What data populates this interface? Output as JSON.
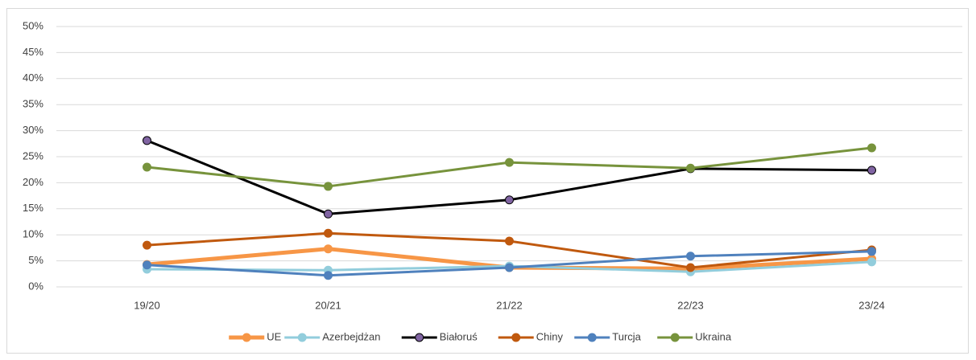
{
  "chart_data": {
    "type": "line",
    "categories": [
      "19/20",
      "20/21",
      "21/22",
      "22/23",
      "23/24"
    ],
    "series": [
      {
        "name": "UE",
        "color": "#f79646",
        "values": [
          4.3,
          7.3,
          3.7,
          3.5,
          5.4
        ]
      },
      {
        "name": "Azerbejdżan",
        "color": "#92cddc",
        "values": [
          3.4,
          3.2,
          4.0,
          2.9,
          4.8
        ]
      },
      {
        "name": "Białoruś",
        "color": "#000000",
        "marker_color": "#8064a2",
        "values": [
          28.1,
          14.0,
          16.7,
          22.7,
          22.4
        ]
      },
      {
        "name": "Chiny",
        "color": "#c0590e",
        "values": [
          8.0,
          10.3,
          8.8,
          3.7,
          7.1
        ]
      },
      {
        "name": "Turcja",
        "color": "#4f81bd",
        "values": [
          4.2,
          2.2,
          3.7,
          5.9,
          6.8
        ]
      },
      {
        "name": "Ukraina",
        "color": "#77933c",
        "values": [
          23.0,
          19.3,
          23.9,
          22.8,
          26.7
        ]
      }
    ],
    "ylim": [
      0,
      50
    ],
    "yticks": [
      {
        "value": 0,
        "label": "0%"
      },
      {
        "value": 5,
        "label": "5%"
      },
      {
        "value": 10,
        "label": "10%"
      },
      {
        "value": 15,
        "label": "15%"
      },
      {
        "value": 20,
        "label": "20%"
      },
      {
        "value": 25,
        "label": "25%"
      },
      {
        "value": 30,
        "label": "30%"
      },
      {
        "value": 35,
        "label": "35%"
      },
      {
        "value": 40,
        "label": "40%"
      },
      {
        "value": 45,
        "label": "45%"
      },
      {
        "value": 50,
        "label": "50%"
      }
    ],
    "grid": true,
    "legend": "bottom"
  }
}
